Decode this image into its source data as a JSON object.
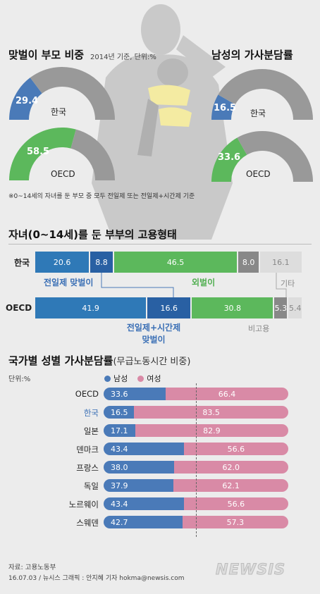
{
  "section1": {
    "title": "맞벌이 부모 비중",
    "subtitle": "2014년 기준, 단위:%",
    "right_title": "남성의 가사분담률",
    "footnote": "※0~14세의 자녀를 둔 부모 중 모두 전일제 또는 전일제+시간제 기준"
  },
  "donuts": [
    {
      "id": "couple-korea",
      "value": 29.4,
      "label": "한국",
      "value_text": "29.4",
      "color": "#4a7ab8"
    },
    {
      "id": "couple-oecd",
      "value": 58.5,
      "label": "OECD",
      "value_text": "58.5",
      "color": "#5cb85c"
    },
    {
      "id": "male-korea",
      "value": 16.5,
      "label": "한국",
      "value_text": "16.5",
      "color": "#4a7ab8"
    },
    {
      "id": "male-oecd",
      "value": 33.6,
      "label": "OECD",
      "value_text": "33.6",
      "color": "#5cb85c"
    }
  ],
  "section2": {
    "title": "자녀(0~14세)를 둔 부부의 고용형태",
    "rows": [
      {
        "label": "한국",
        "values": [
          20.6,
          8.8,
          46.5,
          8.0,
          16.1
        ],
        "texts": [
          "20.6",
          "8.8",
          "46.5",
          "8.0",
          "16.1"
        ]
      },
      {
        "label": "OECD",
        "values": [
          41.9,
          16.6,
          30.8,
          5.3,
          5.4
        ],
        "texts": [
          "41.9",
          "16.6",
          "30.8",
          "5.3",
          "5.4"
        ]
      }
    ],
    "category_labels": {
      "full": "전일제 맞벌이",
      "single": "외벌이",
      "other": "기타",
      "mixed_line1": "전일제+시간제",
      "mixed_line2": "맞벌이",
      "unemployed": "비고용"
    }
  },
  "section3": {
    "title": "국가별 성별 가사분담률",
    "title_suffix": "(무급노동시간 비중)",
    "unit": "단위:%",
    "legend_male": "남성",
    "legend_female": "여성"
  },
  "chart_data": [
    {
      "type": "pie",
      "title": "맞벌이 부모 비중",
      "categories": [
        "한국",
        "OECD"
      ],
      "values": [
        29.4,
        58.5
      ]
    },
    {
      "type": "pie",
      "title": "남성의 가사분담률",
      "categories": [
        "한국",
        "OECD"
      ],
      "values": [
        16.5,
        33.6
      ]
    },
    {
      "type": "bar",
      "title": "자녀(0~14세)를 둔 부부의 고용형태",
      "categories": [
        "한국",
        "OECD"
      ],
      "series": [
        {
          "name": "전일제 맞벌이",
          "values": [
            20.6,
            41.9
          ]
        },
        {
          "name": "전일제+시간제 맞벌이",
          "values": [
            8.8,
            16.6
          ]
        },
        {
          "name": "외벌이",
          "values": [
            46.5,
            30.8
          ]
        },
        {
          "name": "비고용",
          "values": [
            8.0,
            5.3
          ]
        },
        {
          "name": "기타",
          "values": [
            16.1,
            5.4
          ]
        }
      ]
    },
    {
      "type": "bar",
      "title": "국가별 성별 가사분담률",
      "categories": [
        "OECD",
        "한국",
        "일본",
        "덴마크",
        "프랑스",
        "독일",
        "노르웨이",
        "스웨덴"
      ],
      "series": [
        {
          "name": "남성",
          "values": [
            33.6,
            16.5,
            17.1,
            43.4,
            38.0,
            37.9,
            43.4,
            42.7
          ]
        },
        {
          "name": "여성",
          "values": [
            66.4,
            83.5,
            82.9,
            56.6,
            62.0,
            62.1,
            56.6,
            57.3
          ]
        }
      ],
      "male_texts": [
        "33.6",
        "16.5",
        "17.1",
        "43.4",
        "38.0",
        "37.9",
        "43.4",
        "42.7"
      ],
      "female_texts": [
        "66.4",
        "83.5",
        "82.9",
        "56.6",
        "62.0",
        "62.1",
        "56.6",
        "57.3"
      ],
      "highlight": "한국",
      "highlight_color": "#3a6fb5"
    }
  ],
  "footer": {
    "source": "자료: 고용노동부",
    "credit": "16.07.03 / 뉴시스 그래픽 : 안지혜 기자 hokma@newsis.com",
    "logo": "NEWSIS"
  },
  "colors": {
    "blue": "#4a7ab8",
    "green": "#5cb85c",
    "gray": "#999999",
    "pink": "#d98aa6",
    "light": "#dddddd"
  }
}
